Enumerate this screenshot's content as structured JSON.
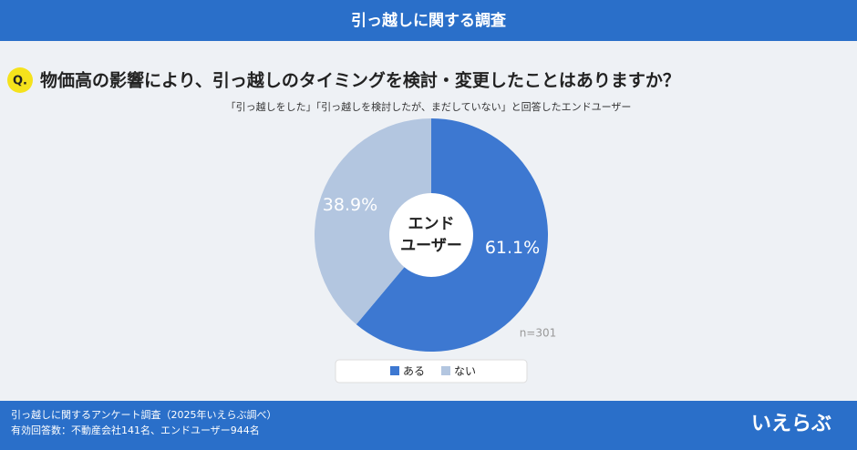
{
  "header": "引っ越しに関する調査",
  "chart_data": {
    "type": "pie",
    "question_label": "Q.",
    "title": "物価高の影響により、引っ越しのタイミングを検討・変更したことはありますか？",
    "subtitle": "「引っ越しをした」「引っ越しを検討したが、まだしていない」と回答したエンドユーザー",
    "center_label": [
      "エンド",
      "ユーザー"
    ],
    "categories": [
      "ある",
      "ない"
    ],
    "values": [
      61.1,
      38.9
    ],
    "value_labels": [
      "61.1%",
      "38.9%"
    ],
    "colors": [
      "#3d78d1",
      "#b3c6e0"
    ],
    "annotation": "n=301"
  },
  "footer": {
    "lines": [
      "引っ越しに関するアンケート調査（2025年いえらぶ調べ）",
      "有効回答数：不動産会社141名、エンドユーザー944名"
    ],
    "logo": "いえらぶ"
  }
}
